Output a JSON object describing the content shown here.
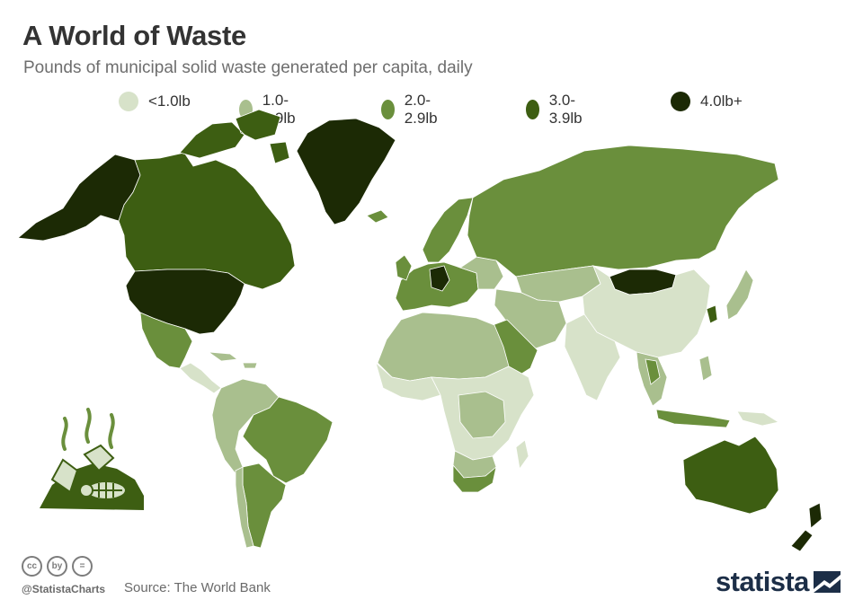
{
  "header": {
    "title": "A World of Waste",
    "subtitle": "Pounds of municipal solid waste generated per capita, daily"
  },
  "legend": [
    {
      "label": "<1.0lb",
      "color": "#d7e2c9"
    },
    {
      "label": "1.0-1.9lb",
      "color": "#a9bf8e"
    },
    {
      "label": "2.0-2.9lb",
      "color": "#6a8f3c"
    },
    {
      "label": "3.0-3.9lb",
      "color": "#3d5e12"
    },
    {
      "label": "4.0lb+",
      "color": "#1c2a05"
    }
  ],
  "map": {
    "regions": [
      {
        "name": "Alaska",
        "category": "4.0lb+"
      },
      {
        "name": "Canada",
        "category": "3.0-3.9lb"
      },
      {
        "name": "Greenland",
        "category": "4.0lb+"
      },
      {
        "name": "United States",
        "category": "4.0lb+"
      },
      {
        "name": "Mexico",
        "category": "2.0-2.9lb"
      },
      {
        "name": "Central America",
        "category": "<1.0lb"
      },
      {
        "name": "Brazil",
        "category": "2.0-2.9lb"
      },
      {
        "name": "Argentina",
        "category": "2.0-2.9lb"
      },
      {
        "name": "Western Europe",
        "category": "2.0-2.9lb"
      },
      {
        "name": "Russia",
        "category": "2.0-2.9lb"
      },
      {
        "name": "Mongolia",
        "category": "4.0lb+"
      },
      {
        "name": "China",
        "category": "<1.0lb"
      },
      {
        "name": "India",
        "category": "<1.0lb"
      },
      {
        "name": "Saudi Arabia",
        "category": "2.0-2.9lb"
      },
      {
        "name": "North Africa",
        "category": "1.0-1.9lb"
      },
      {
        "name": "Central Africa",
        "category": "<1.0lb"
      },
      {
        "name": "South Africa",
        "category": "2.0-2.9lb"
      },
      {
        "name": "Australia",
        "category": "3.0-3.9lb"
      },
      {
        "name": "New Zealand",
        "category": "4.0lb+"
      },
      {
        "name": "Japan",
        "category": "1.0-1.9lb"
      }
    ]
  },
  "footer": {
    "license_icons": [
      "cc",
      "by",
      "="
    ],
    "handle": "@StatistaCharts",
    "source": "Source: The World Bank",
    "brand": "statista"
  }
}
